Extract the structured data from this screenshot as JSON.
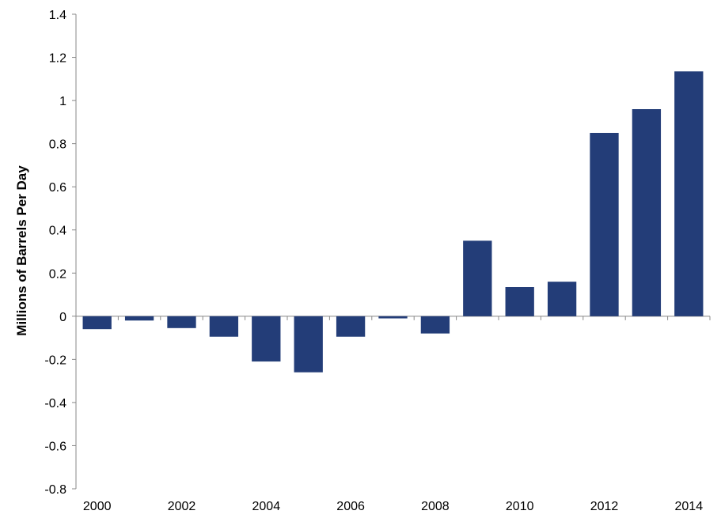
{
  "chart_data": {
    "type": "bar",
    "title": "",
    "xlabel": "",
    "ylabel": "Millions of Barrels Per Day",
    "ylim": [
      -0.8,
      1.4
    ],
    "yticks": [
      -0.8,
      -0.6,
      -0.4,
      -0.2,
      0,
      0.2,
      0.4,
      0.6,
      0.8,
      1,
      1.2,
      1.4
    ],
    "ytick_labels": [
      "-0.8",
      "-0.6",
      "-0.4",
      "-0.2",
      "0",
      "0.2",
      "0.4",
      "0.6",
      "0.8",
      "1",
      "1.2",
      "1.4"
    ],
    "categories": [
      "2000",
      "2001",
      "2002",
      "2003",
      "2004",
      "2005",
      "2006",
      "2007",
      "2008",
      "2009",
      "2010",
      "2011",
      "2012",
      "2013",
      "2014"
    ],
    "xtick_labels": [
      "2000",
      "",
      "2002",
      "",
      "2004",
      "",
      "2006",
      "",
      "2008",
      "",
      "2010",
      "",
      "2012",
      "",
      "2014"
    ],
    "values": [
      -0.06,
      -0.02,
      -0.055,
      -0.095,
      -0.21,
      -0.26,
      -0.095,
      -0.01,
      -0.08,
      0.35,
      0.135,
      0.16,
      0.85,
      0.96,
      1.135
    ],
    "bar_color": "#233D78",
    "grid": false,
    "legend": "none"
  }
}
